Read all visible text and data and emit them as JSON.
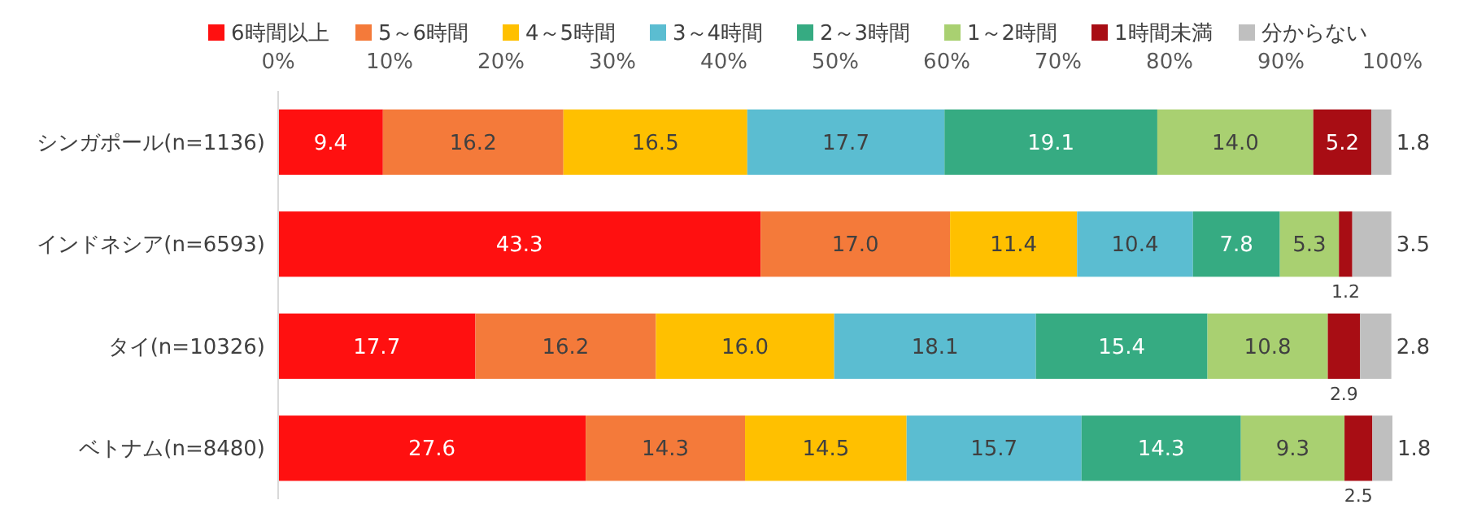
{
  "chart_data": {
    "type": "bar",
    "orientation": "horizontal",
    "stacked": true,
    "legend": "top",
    "grid": false,
    "categories": [
      "シンガポール(n=1136)",
      "インドネシア(n=6593)",
      "タイ(n=10326)",
      "ベトナム(n=8480)"
    ],
    "xlim": [
      0,
      100
    ],
    "xticks": [
      {
        "value": 0,
        "label": "0%"
      },
      {
        "value": 10,
        "label": "10%"
      },
      {
        "value": 20,
        "label": "20%"
      },
      {
        "value": 30,
        "label": "30%"
      },
      {
        "value": 40,
        "label": "40%"
      },
      {
        "value": 50,
        "label": "50%"
      },
      {
        "value": 60,
        "label": "60%"
      },
      {
        "value": 70,
        "label": "70%"
      },
      {
        "value": 80,
        "label": "80%"
      },
      {
        "value": 90,
        "label": "90%"
      },
      {
        "value": 100,
        "label": "100%"
      }
    ],
    "series": [
      {
        "name": "6時間以上",
        "color": "#ff1010",
        "values": [
          9.4,
          43.3,
          17.7,
          27.6
        ],
        "value_labels": [
          "9.4",
          "43.3",
          "17.7",
          "27.6"
        ]
      },
      {
        "name": "5～6時間",
        "color": "#f47a3a",
        "values": [
          16.2,
          17.0,
          16.2,
          14.3
        ],
        "value_labels": [
          "16.2",
          "17.0",
          "16.2",
          "14.3"
        ]
      },
      {
        "name": "4～5時間",
        "color": "#ffc000",
        "values": [
          16.5,
          11.4,
          16.0,
          14.5
        ],
        "value_labels": [
          "16.5",
          "11.4",
          "16.0",
          "14.5"
        ]
      },
      {
        "name": "3～4時間",
        "color": "#5bbdd1",
        "values": [
          17.7,
          10.4,
          18.1,
          15.7
        ],
        "value_labels": [
          "17.7",
          "10.4",
          "18.1",
          "15.7"
        ]
      },
      {
        "name": "2～3時間",
        "color": "#36ab82",
        "values": [
          19.1,
          7.8,
          15.4,
          14.3
        ],
        "value_labels": [
          "19.1",
          "7.8",
          "15.4",
          "14.3"
        ]
      },
      {
        "name": "1～2時間",
        "color": "#a9d071",
        "values": [
          14.0,
          5.3,
          10.8,
          9.3
        ],
        "value_labels": [
          "14.0",
          "5.3",
          "10.8",
          "9.3"
        ]
      },
      {
        "name": "1時間未満",
        "color": "#a80d14",
        "values": [
          5.2,
          1.2,
          2.9,
          2.5
        ],
        "value_labels": [
          "5.2",
          "1.2",
          "2.9",
          "2.5"
        ]
      },
      {
        "name": "分からない",
        "color": "#bfbfbf",
        "values": [
          1.8,
          3.5,
          2.8,
          1.8
        ],
        "value_labels": [
          "1.8",
          "3.5",
          "2.8",
          "1.8"
        ]
      }
    ]
  }
}
